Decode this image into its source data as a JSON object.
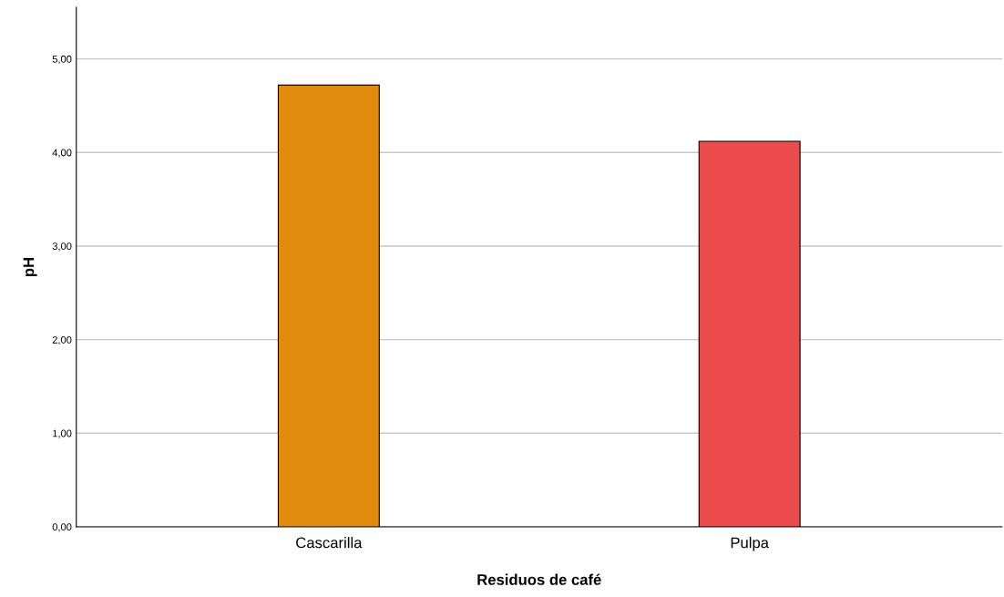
{
  "chart_data": {
    "type": "bar",
    "xlabel": "Residuos de café",
    "ylabel": "pH",
    "categories": [
      "Cascarilla",
      "Pulpa"
    ],
    "values": [
      4.72,
      4.12
    ],
    "colors": [
      "#e08a0e",
      "#ec4b4b"
    ],
    "ylim": [
      0,
      5.55
    ],
    "yticks": [
      {
        "value": 0,
        "label": "0,00"
      },
      {
        "value": 1,
        "label": "1,00"
      },
      {
        "value": 2,
        "label": "2,00"
      },
      {
        "value": 3,
        "label": "3,00"
      },
      {
        "value": 4,
        "label": "4,00"
      },
      {
        "value": 5,
        "label": "5,00"
      }
    ],
    "grid": "y",
    "legend": false
  }
}
